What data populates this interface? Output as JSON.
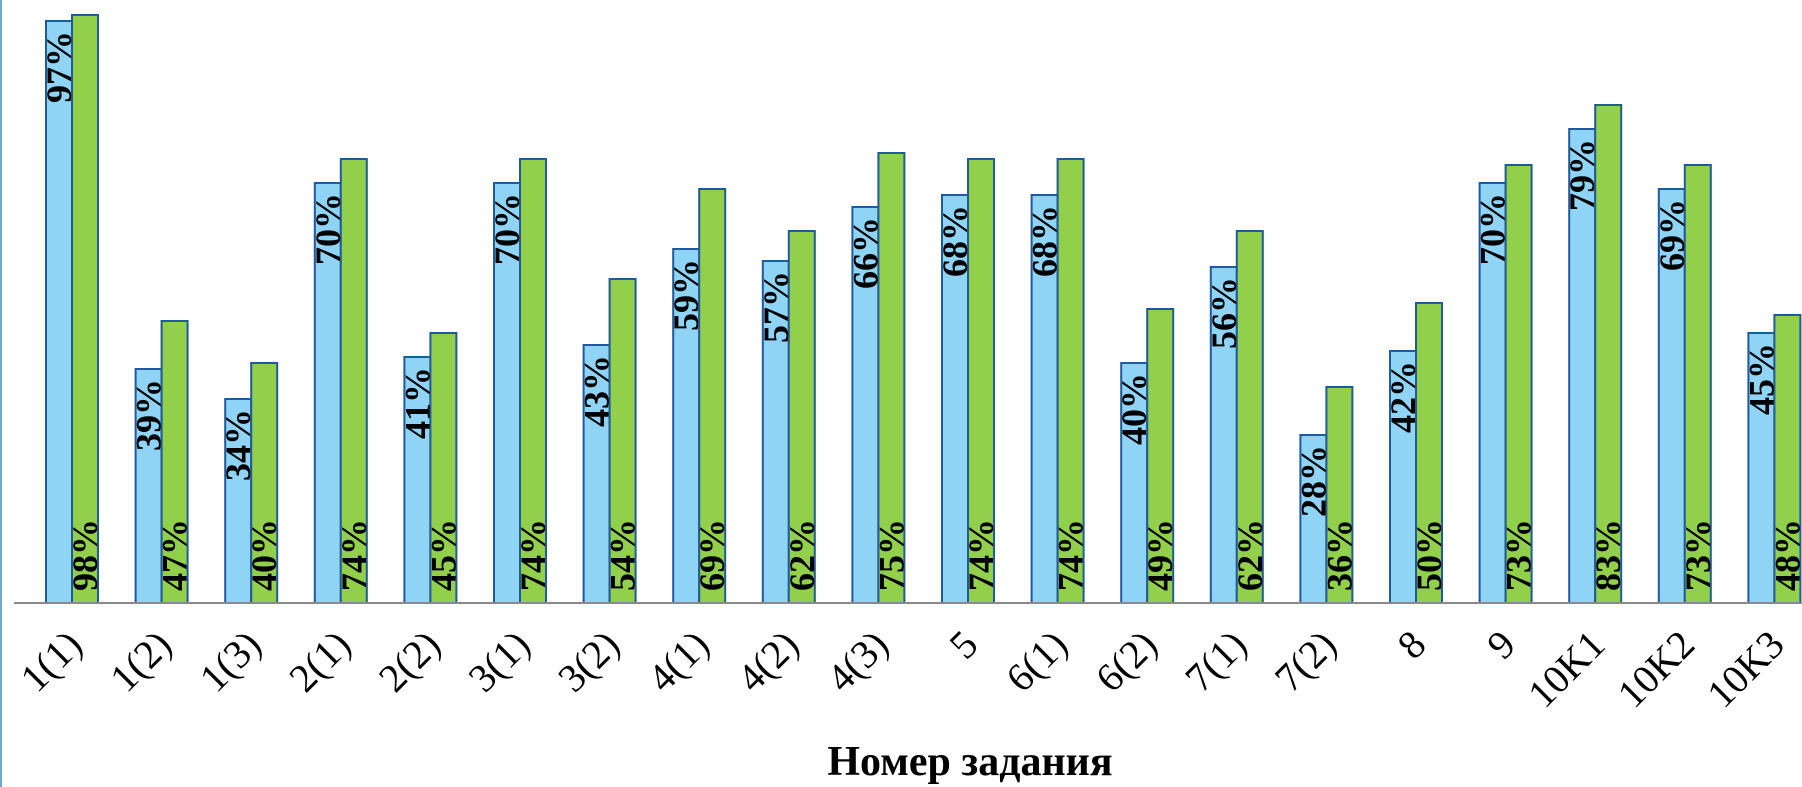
{
  "chart_data": {
    "type": "bar",
    "xlabel": "Номер задания",
    "ylabel": "",
    "ylim": [
      0,
      100
    ],
    "categories": [
      "1(1)",
      "1(2)",
      "1(3)",
      "2(1)",
      "2(2)",
      "3(1)",
      "3(2)",
      "4(1)",
      "4(2)",
      "4(3)",
      "5",
      "6(1)",
      "6(2)",
      "7(1)",
      "7(2)",
      "8",
      "9",
      "10K1",
      "10K2",
      "10K3"
    ],
    "series": [
      {
        "color": "#8fd3f5",
        "stroke": "#1f5a9a",
        "values": [
          97,
          39,
          34,
          70,
          41,
          70,
          43,
          59,
          57,
          66,
          68,
          68,
          40,
          56,
          28,
          42,
          70,
          79,
          69,
          45
        ],
        "labels": [
          "97%",
          "39%",
          "34%",
          "70%",
          "41%",
          "70%",
          "43%",
          "59%",
          "57%",
          "66%",
          "68%",
          "68%",
          "40%",
          "56%",
          "28%",
          "42%",
          "70%",
          "79%",
          "69%",
          "45%"
        ]
      },
      {
        "color": "#92cf4a",
        "stroke": "#1f5a9a",
        "values": [
          98,
          47,
          40,
          74,
          45,
          74,
          54,
          69,
          62,
          75,
          74,
          74,
          49,
          62,
          36,
          50,
          73,
          83,
          73,
          48
        ],
        "labels": [
          "98%",
          "47%",
          "40%",
          "74%",
          "45%",
          "74%",
          "54%",
          "69%",
          "62%",
          "75%",
          "74%",
          "74%",
          "49%",
          "62%",
          "36%",
          "50%",
          "73%",
          "83%",
          "73%",
          "48%"
        ]
      }
    ],
    "grid": false,
    "legend": "none"
  }
}
